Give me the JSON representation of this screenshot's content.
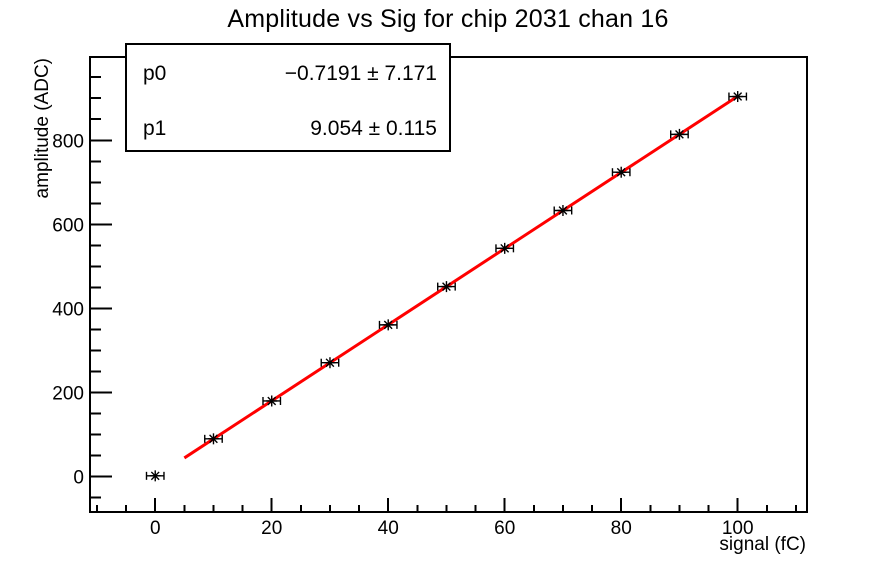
{
  "window": {
    "background": "#ffffff"
  },
  "stats_box": {
    "rows": [
      {
        "name": "p0",
        "value": "−0.7191 ± 7.171"
      },
      {
        "name": "p1",
        "value": "9.054 ± 0.115"
      }
    ]
  },
  "chart_data": {
    "type": "scatter",
    "title": "Amplitude vs Sig for chip 2031 chan 16",
    "xlabel": "signal (fC)",
    "ylabel": "amplitude (ADC)",
    "xlim": [
      -11.2,
      111.9
    ],
    "ylim": [
      -84,
      998
    ],
    "x_major_ticks": [
      0,
      20,
      40,
      60,
      80,
      100
    ],
    "x_major_step": 20,
    "x_minor_step": 5,
    "y_major_ticks": [
      0,
      200,
      400,
      600,
      800
    ],
    "y_major_step": 200,
    "y_minor_step": 50,
    "grid": false,
    "legend": "none",
    "points": {
      "x": [
        0,
        10,
        20,
        30,
        40,
        50,
        60,
        70,
        80,
        90,
        100
      ],
      "y": [
        2,
        90,
        180,
        271,
        361,
        452,
        543,
        633,
        724,
        814,
        904
      ],
      "x_err": 1.5
    },
    "marker_style": "asterisk",
    "fit": {
      "label_p0": "p0",
      "p0": -0.7191,
      "p0_err": 7.171,
      "label_p1": "p1",
      "p1": 9.054,
      "p1_err": 0.115,
      "range": [
        5,
        100
      ],
      "color": "#ff0000"
    },
    "colors": {
      "data": "#000000",
      "fit_line": "#ff0000",
      "frame": "#000000",
      "text": "#000000",
      "background": "#ffffff"
    }
  }
}
